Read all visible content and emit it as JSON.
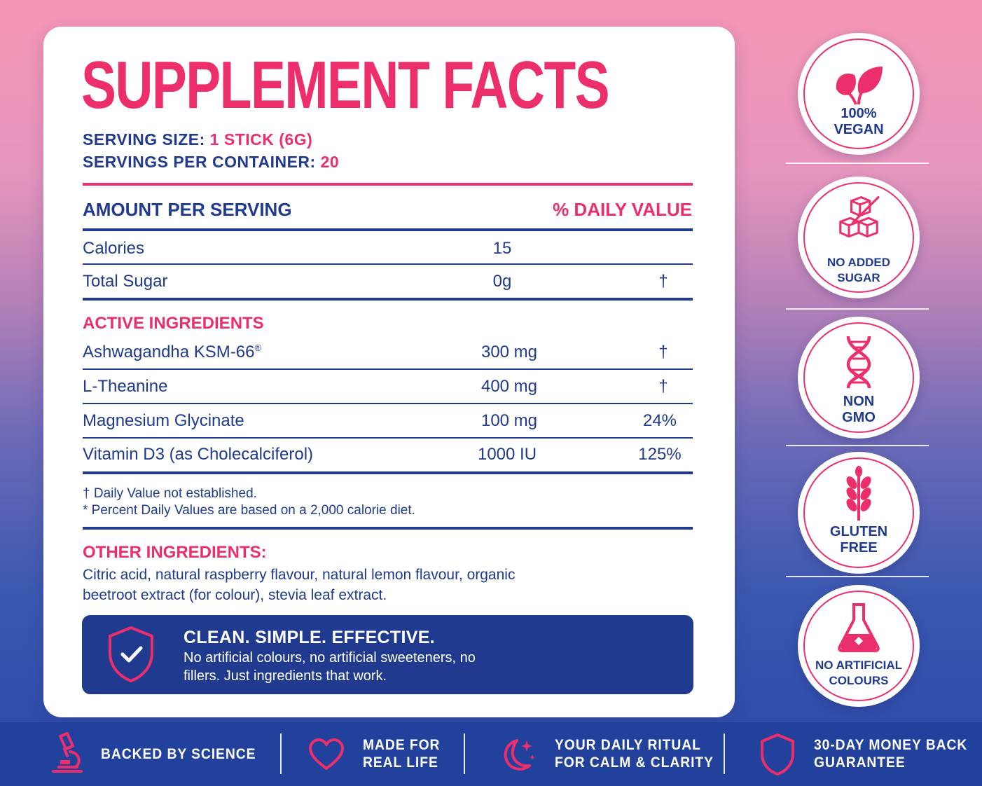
{
  "title": "SUPPLEMENT FACTS",
  "serving": {
    "size_label": "SERVING SIZE:",
    "size_value": "1 STICK (6G)",
    "per_container_label": "SERVINGS PER CONTAINER:",
    "per_container_value": "20"
  },
  "table_header": {
    "left": "AMOUNT PER SERVING",
    "right": "% DAILY VALUE"
  },
  "basic_rows": [
    {
      "name": "Calories",
      "amount": "15",
      "dv": ""
    },
    {
      "name": "Total Sugar",
      "amount": "0g",
      "dv": "†"
    }
  ],
  "active_label": "ACTIVE INGREDIENTS",
  "active_rows": [
    {
      "name": "Ashwagandha KSM-66",
      "mark": "®",
      "amount": "300 mg",
      "dv": "†"
    },
    {
      "name": "L-Theanine",
      "amount": "400 mg",
      "dv": "†"
    },
    {
      "name": "Magnesium Glycinate",
      "amount": "100 mg",
      "dv": "24%"
    },
    {
      "name": "Vitamin D3 (as Cholecalciferol)",
      "amount": "1000 IU",
      "dv": "125%"
    }
  ],
  "notes": [
    "† Daily Value not established.",
    "* Percent Daily Values are based on a 2,000 calorie diet."
  ],
  "other_label": "OTHER INGREDIENTS:",
  "other_text": "Citric acid, natural raspberry flavour, natural lemon flavour, organic beetroot extract (for colour), stevia leaf extract.",
  "banner": {
    "title": "CLEAN. SIMPLE. EFFECTIVE.",
    "body": "No artificial colours, no artificial sweeteners, no fillers. Just ingredients that work.",
    "icon": "shield-check-icon"
  },
  "badges": [
    {
      "line1": "100%",
      "line2": "VEGAN",
      "icon": "leaf-icon"
    },
    {
      "line1": "NO ADDED",
      "line2": "SUGAR",
      "icon": "sugar-cubes-crossed-icon"
    },
    {
      "line1": "NON",
      "line2": "GMO",
      "icon": "dna-icon"
    },
    {
      "line1": "GLUTEN",
      "line2": "FREE",
      "icon": "wheat-icon"
    },
    {
      "line1": "NO ARTIFICIAL",
      "line2": "COLOURS",
      "icon": "flask-icon"
    }
  ],
  "footer": [
    {
      "line1": "BACKED BY SCIENCE",
      "line2": "",
      "icon": "microscope-icon"
    },
    {
      "line1": "MADE FOR",
      "line2": "REAL LIFE",
      "icon": "heart-icon"
    },
    {
      "line1": "YOUR DAILY RITUAL",
      "line2": "FOR CALM & CLARITY",
      "icon": "moon-stars-icon"
    },
    {
      "line1": "30-DAY MONEY BACK",
      "line2": "GUARANTEE",
      "icon": "shield-icon"
    }
  ],
  "colors": {
    "pink": "#ec2f6b",
    "navy": "#1f3a8f",
    "footer": "#21419c"
  }
}
